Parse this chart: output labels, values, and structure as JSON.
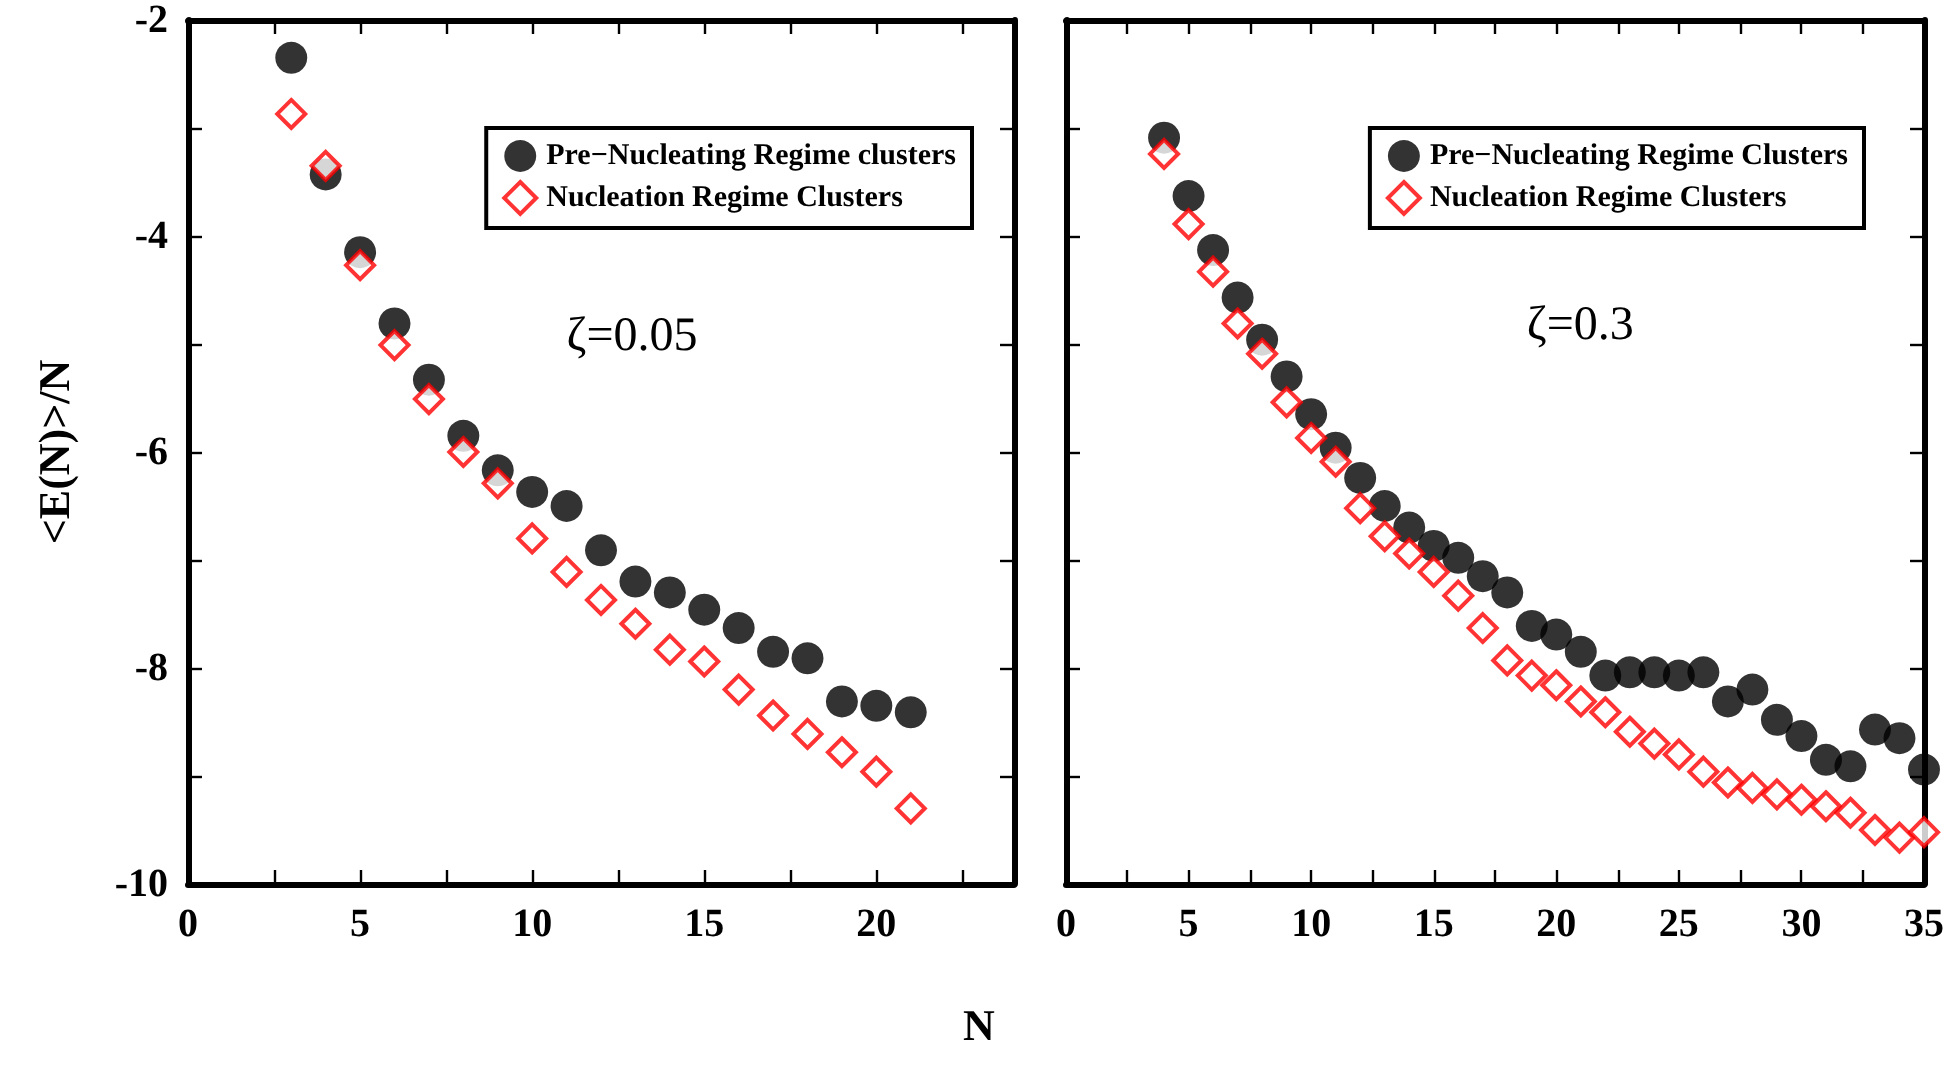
{
  "chart_data": [
    {
      "type": "scatter",
      "xlabel": "N",
      "ylabel": "<E(N)>/N",
      "annotations": [
        "ζ=0.05"
      ],
      "legend": "top right",
      "grid": false,
      "xlim": [
        0,
        24
      ],
      "xticks": [
        0,
        {
          "value": 2.5,
          "label": null
        },
        5,
        {
          "value": 7.5,
          "label": null
        },
        10,
        {
          "value": 12.5,
          "label": null
        },
        15,
        {
          "value": 17.5,
          "label": null
        },
        20,
        {
          "value": 22.5,
          "label": null
        }
      ],
      "ylim": [
        -10,
        -2
      ],
      "yticks": [
        -10,
        {
          "value": -9,
          "label": null
        },
        -8,
        {
          "value": -7,
          "label": null
        },
        -6,
        {
          "value": -5,
          "label": null
        },
        -4,
        {
          "value": -3,
          "label": null
        },
        -2
      ],
      "x": [
        3,
        4,
        5,
        6,
        7,
        8,
        9,
        10,
        11,
        12,
        13,
        14,
        15,
        16,
        17,
        18,
        19,
        20,
        21
      ],
      "series": [
        {
          "name": "Pre−Nucleating Regime clusters",
          "color": "#000000",
          "marker": "circle",
          "values": [
            -2.35,
            -3.43,
            -4.15,
            -4.81,
            -5.33,
            -5.85,
            -6.17,
            -6.37,
            -6.5,
            -6.91,
            -7.2,
            -7.3,
            -7.46,
            -7.63,
            -7.85,
            -7.91,
            -8.31,
            -8.35,
            -8.41
          ]
        },
        {
          "name": "Nucleation Regime Clusters",
          "color": "#ff0000",
          "marker": "diamond",
          "values": [
            -2.87,
            -3.35,
            -4.27,
            -5.01,
            -5.51,
            -6.0,
            -6.29,
            -6.8,
            -7.11,
            -7.37,
            -7.59,
            -7.83,
            -7.94,
            -8.2,
            -8.44,
            -8.61,
            -8.78,
            -8.96,
            -9.3
          ]
        }
      ]
    },
    {
      "type": "scatter",
      "annotations": [
        "ζ=0.3"
      ],
      "legend": "top right",
      "grid": false,
      "tick_labels": "x",
      "xlim": [
        0,
        35
      ],
      "xticks": [
        0,
        {
          "value": 2.5,
          "label": null
        },
        5,
        {
          "value": 7.5,
          "label": null
        },
        10,
        {
          "value": 12.5,
          "label": null
        },
        15,
        {
          "value": 17.5,
          "label": null
        },
        20,
        {
          "value": 22.5,
          "label": null
        },
        25,
        {
          "value": 27.5,
          "label": null
        },
        30,
        {
          "value": 32.5,
          "label": null
        },
        35
      ],
      "ylim": [
        -10,
        -2
      ],
      "yticks": [
        -10,
        {
          "value": -9,
          "label": null
        },
        -8,
        {
          "value": -7,
          "label": null
        },
        -6,
        {
          "value": -5,
          "label": null
        },
        -4,
        {
          "value": -3,
          "label": null
        },
        -2
      ],
      "x": [
        4,
        5,
        6,
        7,
        8,
        9,
        10,
        11,
        12,
        13,
        14,
        15,
        16,
        17,
        18,
        19,
        20,
        21,
        22,
        23,
        24,
        25,
        26,
        27,
        28,
        29,
        30,
        31,
        32,
        33,
        34,
        35
      ],
      "series": [
        {
          "name": "Pre−Nucleating Regime Clusters",
          "color": "#000000",
          "marker": "circle",
          "values": [
            -3.09,
            -3.63,
            -4.13,
            -4.57,
            -4.96,
            -5.3,
            -5.65,
            -5.96,
            -6.24,
            -6.5,
            -6.7,
            -6.87,
            -6.98,
            -7.15,
            -7.3,
            -7.61,
            -7.69,
            -7.85,
            -8.07,
            -8.04,
            -8.04,
            -8.07,
            -8.04,
            -8.31,
            -8.2,
            -8.48,
            -8.63,
            -8.85,
            -8.91,
            -8.57,
            -8.65,
            -8.94
          ]
        },
        {
          "name": "Nucleation Regime Clusters",
          "color": "#ff0000",
          "marker": "diamond",
          "values": [
            -3.24,
            -3.89,
            -4.33,
            -4.81,
            -5.09,
            -5.54,
            -5.87,
            -6.09,
            -6.52,
            -6.78,
            -6.94,
            -7.11,
            -7.33,
            -7.63,
            -7.93,
            -8.07,
            -8.16,
            -8.31,
            -8.41,
            -8.59,
            -8.7,
            -8.8,
            -8.96,
            -9.06,
            -9.11,
            -9.17,
            -9.22,
            -9.28,
            -9.34,
            -9.5,
            -9.57,
            -9.52
          ]
        }
      ]
    }
  ]
}
